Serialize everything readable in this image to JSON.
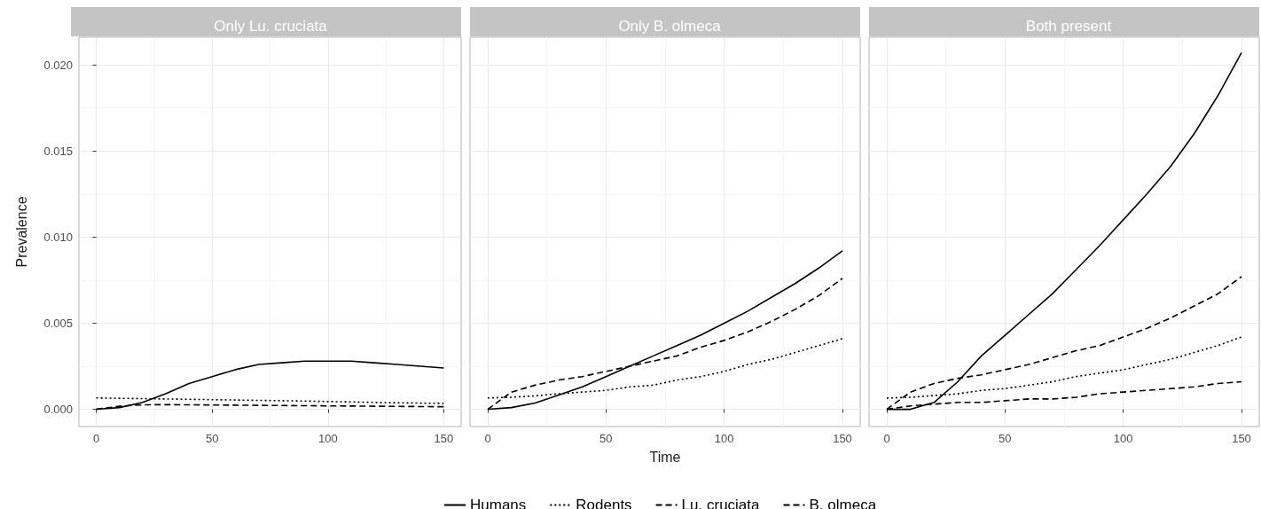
{
  "chart_data": [
    {
      "type": "line",
      "title": "Only Lu. cruciata",
      "ylabel": "Prevalence",
      "x": [
        0,
        10,
        20,
        30,
        40,
        50,
        60,
        70,
        80,
        90,
        100,
        110,
        120,
        130,
        140,
        150
      ],
      "xlim": [
        -7.5,
        157.5
      ],
      "xticks": [
        0,
        50,
        100,
        150
      ],
      "ylim": [
        -0.001,
        0.0216
      ],
      "yticks": [
        {
          "value": 0,
          "label": "0.000"
        },
        {
          "value": 0.005,
          "label": "0.005"
        },
        {
          "value": 0.01,
          "label": "0.010"
        },
        {
          "value": 0.015,
          "label": "0.015"
        },
        {
          "value": 0.02,
          "label": "0.020"
        }
      ],
      "grid": true,
      "marker": "none",
      "series": [
        {
          "color": "#000000",
          "line_style": "solid",
          "values": [
            0,
            0.0001,
            0.0004,
            0.0009,
            0.0015,
            0.0019,
            0.0023,
            0.0026,
            0.0027,
            0.0028,
            0.0028,
            0.0028,
            0.0027,
            0.0026,
            0.0025,
            0.0024
          ]
        },
        {
          "color": "#000000",
          "line_style": "dotted",
          "values": [
            0.00066,
            0.00064,
            0.00062,
            0.0006,
            0.00058,
            0.00056,
            0.00054,
            0.00052,
            0.0005,
            0.00048,
            0.00045,
            0.00043,
            0.0004,
            0.00038,
            0.00036,
            0.00034
          ]
        },
        {
          "color": "#000000",
          "line_style": "dashed",
          "values": [
            0,
            0.00018,
            0.00026,
            0.00027,
            0.00026,
            0.00025,
            0.00024,
            0.00023,
            0.00022,
            0.00021,
            0.0002,
            0.00019,
            0.00018,
            0.00017,
            0.00016,
            0.00015
          ]
        }
      ]
    },
    {
      "type": "line",
      "title": "Only B. olmeca",
      "xlabel": "Time",
      "tick_labels": "x",
      "x": [
        0,
        10,
        20,
        30,
        40,
        50,
        60,
        70,
        80,
        90,
        100,
        110,
        120,
        130,
        140,
        150
      ],
      "xlim": [
        -7.5,
        157.5
      ],
      "xticks": [
        0,
        50,
        100,
        150
      ],
      "ylim": [
        -0.001,
        0.0216
      ],
      "yticks": [
        {
          "value": 0,
          "label": null
        },
        {
          "value": 0.005,
          "label": null
        },
        {
          "value": 0.01,
          "label": null
        },
        {
          "value": 0.015,
          "label": null
        },
        {
          "value": 0.02,
          "label": null
        }
      ],
      "grid": true,
      "marker": "none",
      "series": [
        {
          "color": "#000000",
          "line_style": "solid",
          "values": [
            0,
            0.0001,
            0.00036,
            0.00083,
            0.0013,
            0.0019,
            0.0025,
            0.0031,
            0.0037,
            0.0043,
            0.005,
            0.0057,
            0.0065,
            0.0073,
            0.0082,
            0.0092
          ]
        },
        {
          "color": "#000000",
          "line_style": "dotted",
          "values": [
            0.00066,
            0.0007,
            0.00078,
            0.0009,
            0.001,
            0.0011,
            0.0013,
            0.0014,
            0.0017,
            0.0019,
            0.0022,
            0.0026,
            0.0029,
            0.0033,
            0.0037,
            0.0041
          ]
        },
        {
          "color": "#000000",
          "line_style": "dashed",
          "values": [
            0,
            0.001,
            0.0014,
            0.0017,
            0.0019,
            0.0022,
            0.0025,
            0.0028,
            0.0031,
            0.0036,
            0.004,
            0.0045,
            0.0051,
            0.0058,
            0.0066,
            0.0076
          ]
        }
      ]
    },
    {
      "type": "line",
      "title": "Both present",
      "tick_labels": "x",
      "legend": "bottom",
      "x": [
        0,
        10,
        20,
        30,
        40,
        50,
        60,
        70,
        80,
        90,
        100,
        110,
        120,
        130,
        140,
        150
      ],
      "xlim": [
        -7.5,
        157.5
      ],
      "xticks": [
        0,
        50,
        100,
        150
      ],
      "ylim": [
        -0.001,
        0.0216
      ],
      "yticks": [
        {
          "value": 0,
          "label": null
        },
        {
          "value": 0.005,
          "label": null
        },
        {
          "value": 0.01,
          "label": null
        },
        {
          "value": 0.015,
          "label": null
        },
        {
          "value": 0.02,
          "label": null
        }
      ],
      "grid": true,
      "marker": "none",
      "series": [
        {
          "name": "Humans",
          "color": "#000000",
          "line_style": "solid",
          "values": [
            0,
            0,
            0.0004,
            0.0016,
            0.0031,
            0.0043,
            0.0055,
            0.0067,
            0.0081,
            0.0095,
            0.011,
            0.0125,
            0.0141,
            0.016,
            0.0182,
            0.0207
          ]
        },
        {
          "name": "Rodents",
          "color": "#000000",
          "line_style": "dotted",
          "values": [
            0.00065,
            0.0007,
            0.0008,
            0.0009,
            0.0011,
            0.0012,
            0.0014,
            0.0016,
            0.0019,
            0.0021,
            0.0023,
            0.0026,
            0.0029,
            0.0033,
            0.0037,
            0.0042
          ]
        },
        {
          "name": "Lu. cruciata",
          "color": "#000000",
          "line_style": "dashed",
          "values": [
            0,
            0.0002,
            0.0003,
            0.0004,
            0.0004,
            0.0005,
            0.0006,
            0.0006,
            0.0007,
            0.0009,
            0.001,
            0.0011,
            0.0012,
            0.0013,
            0.0015,
            0.0016
          ]
        },
        {
          "name": "B. olmeca",
          "color": "#000000",
          "line_style": "dashed",
          "values": [
            0,
            0.001,
            0.0015,
            0.0018,
            0.002,
            0.0023,
            0.0026,
            0.003,
            0.0034,
            0.0037,
            0.0042,
            0.0047,
            0.0053,
            0.006,
            0.0067,
            0.0077
          ]
        }
      ]
    }
  ]
}
